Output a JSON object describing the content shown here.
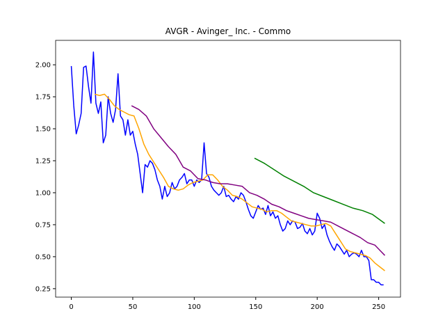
{
  "chart_data": {
    "type": "line",
    "title": "AVGR - Avinger_ Inc. - Commo",
    "xlim": [
      -12.75,
      267.75
    ],
    "ylim": [
      0.184,
      2.191
    ],
    "xticks": [
      0,
      50,
      100,
      150,
      200,
      250
    ],
    "yticks": [
      {
        "value": 0.25,
        "label": "0.25"
      },
      {
        "value": 0.5,
        "label": "0.50"
      },
      {
        "value": 0.75,
        "label": "0.75"
      },
      {
        "value": 1.0,
        "label": "1.00"
      },
      {
        "value": 1.25,
        "label": "1.25"
      },
      {
        "value": 1.5,
        "label": "1.50"
      },
      {
        "value": 1.75,
        "label": "1.75"
      },
      {
        "value": 2.0,
        "label": "2.00"
      }
    ],
    "grid": false,
    "series": [
      {
        "color": "#0000ff",
        "x": [
          0,
          2,
          4,
          6,
          8,
          10,
          12,
          14,
          16,
          18,
          20,
          22,
          24,
          26,
          28,
          30,
          32,
          34,
          36,
          38,
          40,
          42,
          44,
          46,
          48,
          50,
          52,
          54,
          56,
          58,
          60,
          62,
          64,
          66,
          68,
          70,
          72,
          74,
          76,
          78,
          80,
          82,
          84,
          86,
          88,
          90,
          92,
          94,
          96,
          98,
          100,
          102,
          104,
          106,
          108,
          110,
          112,
          114,
          116,
          118,
          120,
          122,
          124,
          126,
          128,
          130,
          132,
          134,
          136,
          138,
          140,
          142,
          144,
          146,
          148,
          150,
          152,
          154,
          156,
          158,
          160,
          162,
          164,
          166,
          168,
          170,
          172,
          174,
          176,
          178,
          180,
          182,
          184,
          186,
          188,
          190,
          192,
          194,
          196,
          198,
          200,
          202,
          204,
          206,
          208,
          210,
          212,
          214,
          216,
          218,
          220,
          222,
          224,
          226,
          228,
          230,
          232,
          234,
          236,
          238,
          240,
          242,
          244,
          246,
          248,
          250,
          252,
          254
        ],
        "values": [
          1.99,
          1.68,
          1.46,
          1.53,
          1.62,
          1.98,
          1.99,
          1.83,
          1.7,
          2.1,
          1.7,
          1.62,
          1.71,
          1.39,
          1.45,
          1.75,
          1.62,
          1.55,
          1.65,
          1.93,
          1.6,
          1.57,
          1.45,
          1.57,
          1.45,
          1.48,
          1.38,
          1.3,
          1.15,
          1.0,
          1.22,
          1.2,
          1.25,
          1.23,
          1.18,
          1.1,
          1.05,
          0.95,
          1.05,
          0.97,
          1.0,
          1.08,
          1.03,
          1.05,
          1.1,
          1.12,
          1.15,
          1.07,
          1.1,
          1.1,
          1.05,
          1.1,
          1.08,
          1.1,
          1.39,
          1.15,
          1.12,
          1.05,
          1.02,
          1.0,
          0.98,
          1.0,
          1.05,
          0.97,
          0.98,
          0.95,
          0.93,
          0.97,
          0.95,
          1.0,
          0.98,
          0.93,
          0.87,
          0.82,
          0.8,
          0.85,
          0.9,
          0.87,
          0.88,
          0.83,
          0.9,
          0.82,
          0.85,
          0.8,
          0.82,
          0.75,
          0.7,
          0.72,
          0.78,
          0.75,
          0.78,
          0.77,
          0.72,
          0.73,
          0.76,
          0.7,
          0.68,
          0.72,
          0.67,
          0.7,
          0.84,
          0.8,
          0.72,
          0.75,
          0.67,
          0.62,
          0.58,
          0.55,
          0.6,
          0.58,
          0.55,
          0.52,
          0.55,
          0.5,
          0.52,
          0.53,
          0.52,
          0.5,
          0.55,
          0.5,
          0.5,
          0.47,
          0.32,
          0.32,
          0.3,
          0.3,
          0.28,
          0.28
        ]
      },
      {
        "color": "#ffa500",
        "x": [
          19,
          23,
          27,
          31,
          35,
          39,
          43,
          47,
          51,
          55,
          59,
          63,
          67,
          71,
          75,
          79,
          83,
          87,
          91,
          95,
          99,
          103,
          107,
          111,
          115,
          119,
          123,
          127,
          131,
          135,
          139,
          143,
          147,
          151,
          155,
          159,
          163,
          167,
          171,
          175,
          179,
          183,
          187,
          191,
          195,
          199,
          203,
          207,
          211,
          215,
          219,
          223,
          227,
          231,
          235,
          239,
          243,
          247,
          251,
          255
        ],
        "values": [
          1.77,
          1.76,
          1.77,
          1.73,
          1.68,
          1.65,
          1.63,
          1.61,
          1.6,
          1.5,
          1.38,
          1.3,
          1.24,
          1.18,
          1.12,
          1.05,
          1.03,
          1.02,
          1.03,
          1.06,
          1.08,
          1.09,
          1.1,
          1.14,
          1.14,
          1.1,
          1.05,
          1.02,
          0.98,
          0.97,
          0.95,
          0.92,
          0.89,
          0.88,
          0.87,
          0.85,
          0.86,
          0.86,
          0.84,
          0.81,
          0.78,
          0.77,
          0.76,
          0.75,
          0.74,
          0.74,
          0.75,
          0.76,
          0.74,
          0.68,
          0.62,
          0.56,
          0.54,
          0.53,
          0.52,
          0.51,
          0.49,
          0.45,
          0.42,
          0.39
        ]
      },
      {
        "color": "#800080",
        "x": [
          49,
          55,
          61,
          67,
          73,
          79,
          85,
          91,
          97,
          103,
          109,
          115,
          121,
          127,
          133,
          139,
          145,
          151,
          157,
          163,
          169,
          175,
          181,
          187,
          193,
          199,
          205,
          211,
          217,
          223,
          229,
          235,
          241,
          247,
          251,
          255
        ],
        "values": [
          1.68,
          1.65,
          1.6,
          1.5,
          1.43,
          1.36,
          1.3,
          1.2,
          1.17,
          1.11,
          1.1,
          1.08,
          1.07,
          1.07,
          1.06,
          1.05,
          1.0,
          0.98,
          0.95,
          0.91,
          0.89,
          0.86,
          0.84,
          0.82,
          0.8,
          0.79,
          0.78,
          0.77,
          0.74,
          0.71,
          0.68,
          0.65,
          0.61,
          0.59,
          0.55,
          0.51
        ]
      },
      {
        "color": "#008000",
        "x": [
          149,
          157,
          165,
          173,
          181,
          189,
          197,
          205,
          213,
          221,
          229,
          237,
          245,
          255
        ],
        "values": [
          1.27,
          1.23,
          1.18,
          1.13,
          1.09,
          1.05,
          1.0,
          0.97,
          0.94,
          0.91,
          0.88,
          0.86,
          0.83,
          0.76
        ]
      }
    ]
  }
}
